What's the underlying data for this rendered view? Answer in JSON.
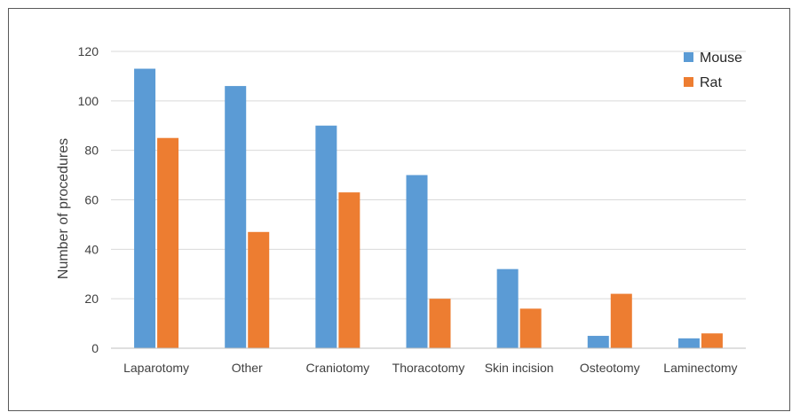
{
  "chart_data": {
    "type": "bar",
    "title": "",
    "xlabel": "",
    "ylabel": "Number of procedures",
    "ylim": [
      0,
      120
    ],
    "yticks": [
      0,
      20,
      40,
      60,
      80,
      100,
      120
    ],
    "grid": true,
    "legend_position": "top-right",
    "categories": [
      "Laparotomy",
      "Other",
      "Craniotomy",
      "Thoracotomy",
      "Skin incision",
      "Osteotomy",
      "Laminectomy"
    ],
    "series": [
      {
        "name": "Mouse",
        "color": "#5B9BD5",
        "values": [
          113,
          106,
          90,
          70,
          32,
          5,
          4
        ]
      },
      {
        "name": "Rat",
        "color": "#ED7D31",
        "values": [
          85,
          47,
          63,
          20,
          16,
          22,
          6
        ]
      }
    ]
  }
}
